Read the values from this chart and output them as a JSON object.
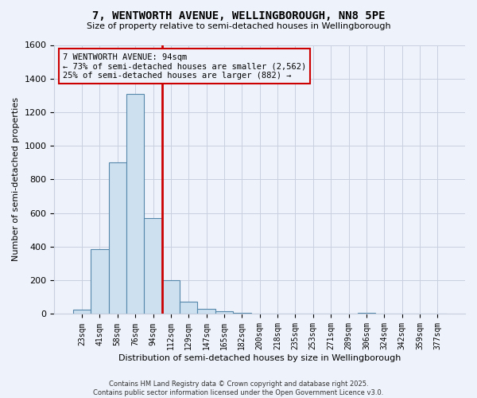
{
  "title": "7, WENTWORTH AVENUE, WELLINGBOROUGH, NN8 5PE",
  "subtitle": "Size of property relative to semi-detached houses in Wellingborough",
  "xlabel": "Distribution of semi-detached houses by size in Wellingborough",
  "ylabel": "Number of semi-detached properties",
  "categories": [
    "23sqm",
    "41sqm",
    "58sqm",
    "76sqm",
    "94sqm",
    "112sqm",
    "129sqm",
    "147sqm",
    "165sqm",
    "182sqm",
    "200sqm",
    "218sqm",
    "235sqm",
    "253sqm",
    "271sqm",
    "289sqm",
    "306sqm",
    "324sqm",
    "342sqm",
    "359sqm",
    "377sqm"
  ],
  "values": [
    25,
    385,
    900,
    1310,
    570,
    200,
    75,
    30,
    15,
    5,
    2,
    1,
    1,
    0,
    0,
    0,
    5,
    0,
    0,
    0,
    0
  ],
  "bar_color": "#cce0f0",
  "bar_edge_color": "#5588aa",
  "highlight_line_color": "#cc0000",
  "highlight_bar_index": 4,
  "annotation_text": "7 WENTWORTH AVENUE: 94sqm\n← 73% of semi-detached houses are smaller (2,562)\n25% of semi-detached houses are larger (882) →",
  "annotation_box_color": "#cc0000",
  "ylim": [
    0,
    1600
  ],
  "yticks": [
    0,
    200,
    400,
    600,
    800,
    1000,
    1200,
    1400,
    1600
  ],
  "footer_line1": "Contains HM Land Registry data © Crown copyright and database right 2025.",
  "footer_line2": "Contains public sector information licensed under the Open Government Licence v3.0.",
  "background_color": "#eef2fa",
  "grid_color": "#c8d0e0"
}
